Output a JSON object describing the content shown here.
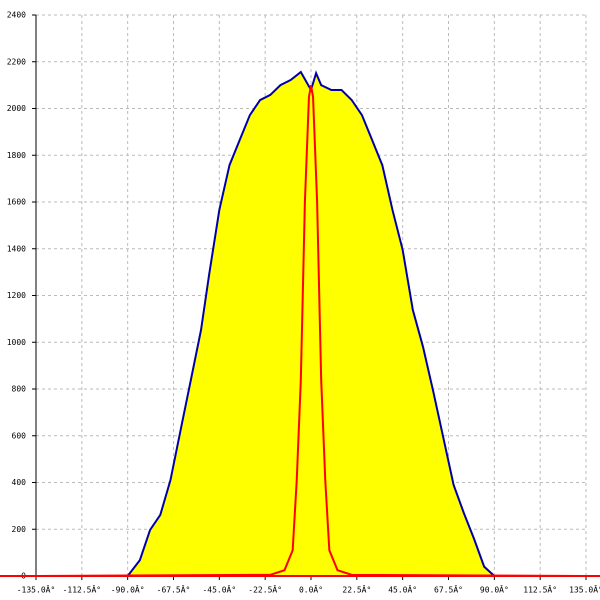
{
  "chart_data": {
    "type": "line",
    "xlim": [
      -135,
      135
    ],
    "ylim": [
      0,
      2400
    ],
    "xticks": [
      {
        "value": -135,
        "label": "-135.0Â°"
      },
      {
        "value": -112.5,
        "label": "-112.5Â°"
      },
      {
        "value": -90,
        "label": "-90.0Â°"
      },
      {
        "value": -67.5,
        "label": "-67.5Â°"
      },
      {
        "value": -45,
        "label": "-45.0Â°"
      },
      {
        "value": -22.5,
        "label": "-22.5Â°"
      },
      {
        "value": 0,
        "label": "0.0Â°"
      },
      {
        "value": 22.5,
        "label": "22.5Â°"
      },
      {
        "value": 45,
        "label": "45.0Â°"
      },
      {
        "value": 67.5,
        "label": "67.5Â°"
      },
      {
        "value": 90,
        "label": "90.0Â°"
      },
      {
        "value": 112.5,
        "label": "112.5Â°"
      },
      {
        "value": 135,
        "label": "135.0Â°"
      }
    ],
    "yticks": [
      0,
      200,
      400,
      600,
      800,
      1000,
      1200,
      1400,
      1600,
      1800,
      2000,
      2200,
      2400
    ],
    "grid": true,
    "series": [
      {
        "color": "#0000aa",
        "fill": "#ffff00",
        "x": [
          -135,
          -90,
          -84,
          -79,
          -74,
          -69,
          -64,
          -59,
          -54,
          -50,
          -45,
          -40,
          -35,
          -30,
          -25,
          -20,
          -15,
          -10,
          -5,
          0,
          2.5,
          5,
          10,
          15,
          20,
          25,
          30,
          35,
          40,
          45,
          50,
          55,
          60,
          65,
          70,
          75,
          80,
          85,
          90,
          135
        ],
        "values": [
          0,
          0,
          68,
          197,
          261,
          410,
          625,
          838,
          1052,
          1290,
          1566,
          1758,
          1865,
          1972,
          2036,
          2058,
          2100,
          2122,
          2156,
          2079,
          2151,
          2100,
          2079,
          2079,
          2036,
          1972,
          1865,
          1758,
          1566,
          1395,
          1138,
          980,
          790,
          590,
          390,
          270,
          160,
          40,
          0,
          0
        ]
      },
      {
        "color": "#ff0000",
        "x": [
          -135,
          -20,
          -13,
          -9,
          -7,
          -5,
          -3,
          -1,
          0,
          1,
          3,
          5,
          7,
          9,
          13,
          20,
          135
        ],
        "values": [
          0,
          5,
          25,
          110,
          410,
          838,
          1600,
          2050,
          2100,
          2050,
          1600,
          838,
          410,
          110,
          25,
          5,
          0
        ]
      }
    ]
  }
}
